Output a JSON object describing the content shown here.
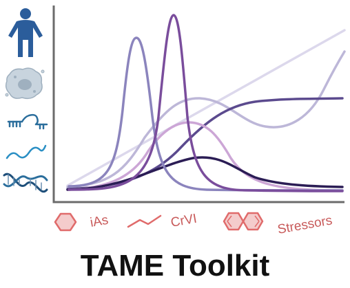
{
  "stressors": {
    "ias": "iAs",
    "crvi": "CrVI",
    "other": "Stressors"
  },
  "title": "TAME Toolkit",
  "colors": {
    "human": "#2b5d9b",
    "cell": "#c8d4de",
    "rna": "#2b6e9c",
    "mrna": "#2a8fc4",
    "dna": "#1e4f7a",
    "chemical": "#e06b6b",
    "label": "#c85a5a",
    "axis": "#6b6b6b"
  },
  "icons": [
    "human-icon",
    "cell-icon",
    "rna-icon",
    "mrna-icon",
    "dna-icon",
    "hexagon-icon",
    "chain-icon",
    "naphthalene-icon"
  ]
}
